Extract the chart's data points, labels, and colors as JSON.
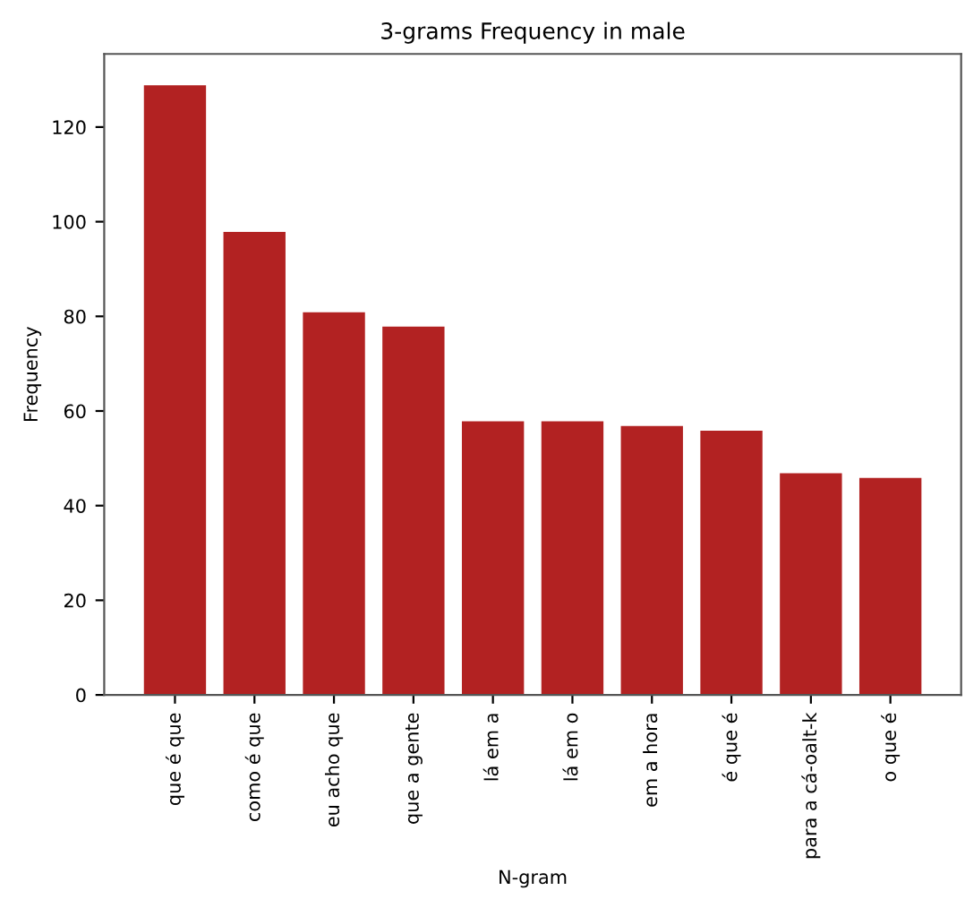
{
  "chart_data": {
    "type": "bar",
    "title": "3-grams Frequency in male",
    "xlabel": "N-gram",
    "ylabel": "Frequency",
    "categories": [
      "que é que",
      "como é que",
      "eu acho que",
      "que a gente",
      "lá em a",
      "lá em o",
      "em a hora",
      "é que é",
      "para a cá-oalt-k",
      "o que é"
    ],
    "values": [
      129,
      98,
      81,
      78,
      58,
      58,
      57,
      56,
      47,
      46
    ],
    "color": "#b22222",
    "ylim": [
      0,
      135.45
    ],
    "yticks": [
      0,
      20,
      40,
      60,
      80,
      100,
      120
    ],
    "grid": false
  }
}
